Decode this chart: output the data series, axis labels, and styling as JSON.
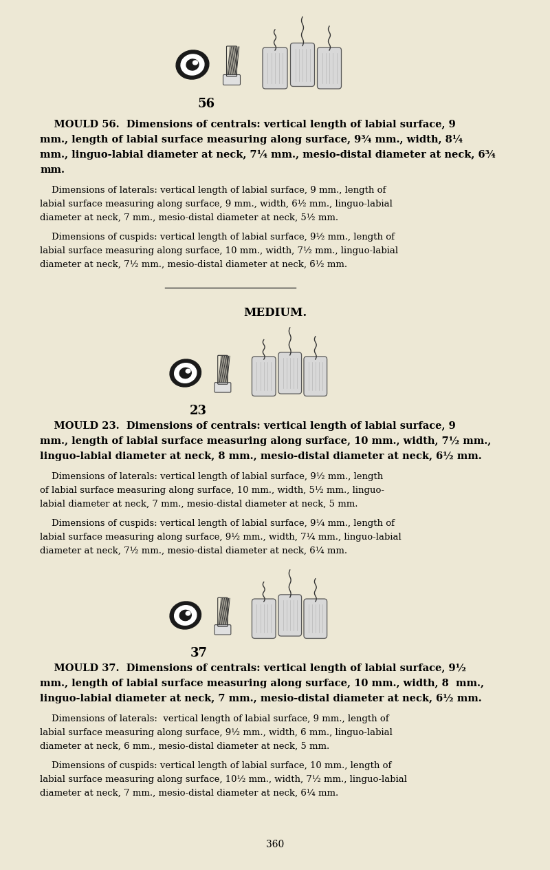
{
  "bg_color": "#ede8d5",
  "page_number": "360",
  "sections": [
    {
      "mould_number": "56",
      "bold_lines": [
        "    MOULD 56.  Dimensions of centrals: vertical length of labial surface, 9",
        "mm., length of labial surface measuring along surface, 9¾ mm., width, 8¼",
        "mm., linguo-labial diameter at neck, 7¼ mm., mesio-distal diameter at neck, 6¾",
        "mm."
      ],
      "reg_para1": [
        "    Dimensions of laterals: vertical length of labial surface, 9 mm., length of",
        "labial surface measuring along surface, 9 mm., width, 6½ mm., linguo-labial",
        "diameter at neck, 7 mm., mesio-distal diameter at neck, 5½ mm."
      ],
      "reg_para2": [
        "    Dimensions of cuspids: vertical length of labial surface, 9½ mm., length of",
        "labial surface measuring along surface, 10 mm., width, 7½ mm., linguo-labial",
        "diameter at neck, 7½ mm., mesio-distal diameter at neck, 6½ mm."
      ]
    },
    {
      "mould_number": "23",
      "bold_lines": [
        "    MOULD 23.  Dimensions of centrals: vertical length of labial surface, 9",
        "mm., length of labial surface measuring along surface, 10 mm., width, 7½ mm.,",
        "linguo-labial diameter at neck, 8 mm., mesio-distal diameter at neck, 6½ mm."
      ],
      "reg_para1": [
        "    Dimensions of laterals: vertical length of labial surface, 9½ mm., length",
        "of labial surface measuring along surface, 10 mm., width, 5½ mm., linguo-",
        "labial diameter at neck, 7 mm., mesio-distal diameter at neck, 5 mm."
      ],
      "reg_para2": [
        "    Dimensions of cuspids: vertical length of labial surface, 9¼ mm., length of",
        "labial surface measuring along surface, 9½ mm., width, 7¼ mm., linguo-labial",
        "diameter at neck, 7½ mm., mesio-distal diameter at neck, 6¼ mm."
      ]
    },
    {
      "mould_number": "37",
      "bold_lines": [
        "    MOULD 37.  Dimensions of centrals: vertical length of labial surface, 9½",
        "mm., length of labial surface measuring along surface, 10 mm., width, 8  mm.,",
        "linguo-labial diameter at neck, 7 mm., mesio-distal diameter at neck, 6½ mm."
      ],
      "reg_para1": [
        "    Dimensions of laterals:  vertical length of labial surface, 9 mm., length of",
        "labial surface measuring along surface, 9½ mm., width, 6 mm., linguo-labial",
        "diameter at neck, 6 mm., mesio-distal diameter at neck, 5 mm."
      ],
      "reg_para2": [
        "    Dimensions of cuspids: vertical length of labial surface, 10 mm., length of",
        "labial surface measuring along surface, 10½ mm., width, 7½ mm., linguo-labial",
        "diameter at neck, 7 mm., mesio-distal diameter at neck, 6¼ mm."
      ]
    }
  ]
}
